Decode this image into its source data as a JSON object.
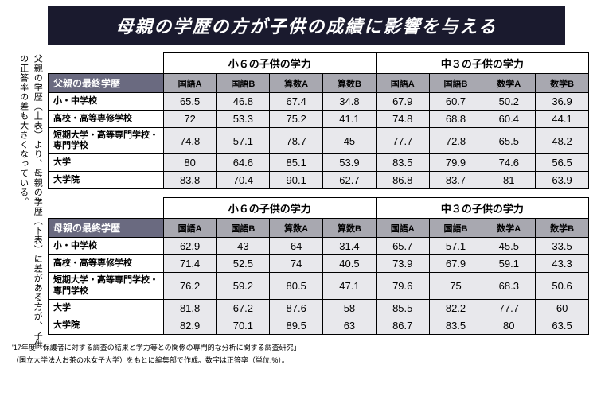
{
  "title": "母親の学歴の方が子供の成績に影響を与える",
  "vertical_note": "父親の学歴（上表）より、母親の学歴（下表）に差がある方が、子供の正答率の差も大きくなっている。",
  "group_headers": [
    "小６の子供の学力",
    "中３の子供の学力"
  ],
  "subjects_e": [
    "国語A",
    "国語B",
    "算数A",
    "算数B"
  ],
  "subjects_j": [
    "国語A",
    "国語B",
    "数学A",
    "数学B"
  ],
  "tables": [
    {
      "corner": "父親の最終学歴",
      "rows": [
        {
          "label": "小・中学校",
          "vals": [
            "65.5",
            "46.8",
            "67.4",
            "34.8",
            "67.9",
            "60.7",
            "50.2",
            "36.9"
          ]
        },
        {
          "label": "高校・高等専修学校",
          "vals": [
            "72",
            "53.3",
            "75.2",
            "41.1",
            "74.8",
            "68.8",
            "60.4",
            "44.1"
          ]
        },
        {
          "label": "短期大学・高等専門学校・専門学校",
          "vals": [
            "74.8",
            "57.1",
            "78.7",
            "45",
            "77.7",
            "72.8",
            "65.5",
            "48.2"
          ]
        },
        {
          "label": "大学",
          "vals": [
            "80",
            "64.6",
            "85.1",
            "53.9",
            "83.5",
            "79.9",
            "74.6",
            "56.5"
          ]
        },
        {
          "label": "大学院",
          "vals": [
            "83.8",
            "70.4",
            "90.1",
            "62.7",
            "86.8",
            "83.7",
            "81",
            "63.9"
          ]
        }
      ]
    },
    {
      "corner": "母親の最終学歴",
      "rows": [
        {
          "label": "小・中学校",
          "vals": [
            "62.9",
            "43",
            "64",
            "31.4",
            "65.7",
            "57.1",
            "45.5",
            "33.5"
          ]
        },
        {
          "label": "高校・高等専修学校",
          "vals": [
            "71.4",
            "52.5",
            "74",
            "40.5",
            "73.9",
            "67.9",
            "59.1",
            "43.3"
          ]
        },
        {
          "label": "短期大学・高等専門学校・専門学校",
          "vals": [
            "76.2",
            "59.2",
            "80.5",
            "47.1",
            "79.6",
            "75",
            "68.3",
            "50.6"
          ]
        },
        {
          "label": "大学",
          "vals": [
            "81.8",
            "67.2",
            "87.6",
            "58",
            "85.5",
            "82.2",
            "77.7",
            "60"
          ]
        },
        {
          "label": "大学院",
          "vals": [
            "82.9",
            "70.1",
            "89.5",
            "63",
            "86.7",
            "83.5",
            "80",
            "63.5"
          ]
        }
      ]
    }
  ],
  "footnote_1": "'17年度「保護者に対する調査の結果と学力等との関係の専門的な分析に関する調査研究」",
  "footnote_2": "（国立大学法人お茶の水女子大学）をもとに編集部で作成。数字は正答率（単位:%）。",
  "styling": {
    "banner_bg": "#1a1a2e",
    "banner_fg": "#ffffff",
    "corner_bg": "#6a6a80",
    "subj_bg": "#a8a8b0",
    "val_bg": "#e8e8ec",
    "border": "#000000",
    "title_fontsize": 22,
    "body_fontsize": 12,
    "footnote_fontsize": 9
  }
}
